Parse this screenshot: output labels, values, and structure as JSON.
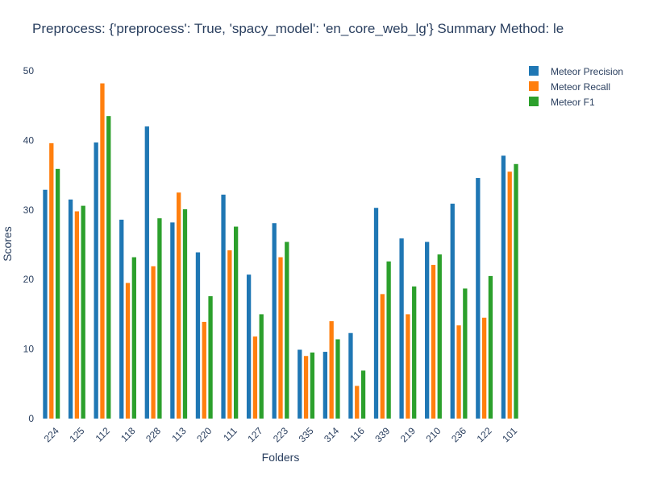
{
  "chart_data": {
    "type": "bar",
    "title": "Preprocess: {'preprocess': True, 'spacy_model': 'en_core_web_lg'} Summary Method: le",
    "xlabel": "Folders",
    "ylabel": "Scores",
    "ylim": [
      0,
      50
    ],
    "yticks": [
      0,
      10,
      20,
      30,
      40,
      50
    ],
    "legend_position": "top-right",
    "categories": [
      "224",
      "125",
      "112",
      "118",
      "228",
      "113",
      "220",
      "111",
      "127",
      "223",
      "335",
      "314",
      "116",
      "339",
      "219",
      "210",
      "236",
      "122",
      "101"
    ],
    "series": [
      {
        "name": "Meteor Precision",
        "color": "#1f77b4",
        "values": [
          32.9,
          31.5,
          39.7,
          28.6,
          42.0,
          28.2,
          23.9,
          32.2,
          20.7,
          28.1,
          9.9,
          9.6,
          12.3,
          30.3,
          25.9,
          25.4,
          30.9,
          34.6,
          37.8
        ]
      },
      {
        "name": "Meteor Recall",
        "color": "#ff7f0e",
        "values": [
          39.6,
          29.8,
          48.2,
          19.5,
          21.9,
          32.5,
          13.9,
          24.2,
          11.8,
          23.2,
          9.0,
          14.0,
          4.7,
          17.9,
          15.0,
          22.1,
          13.4,
          14.5,
          35.5
        ]
      },
      {
        "name": "Meteor F1",
        "color": "#2ca02c",
        "values": [
          35.9,
          30.6,
          43.5,
          23.2,
          28.8,
          30.1,
          17.6,
          27.6,
          15.0,
          25.4,
          9.5,
          11.4,
          6.9,
          22.6,
          19.0,
          23.6,
          18.7,
          20.5,
          36.6
        ]
      }
    ]
  }
}
